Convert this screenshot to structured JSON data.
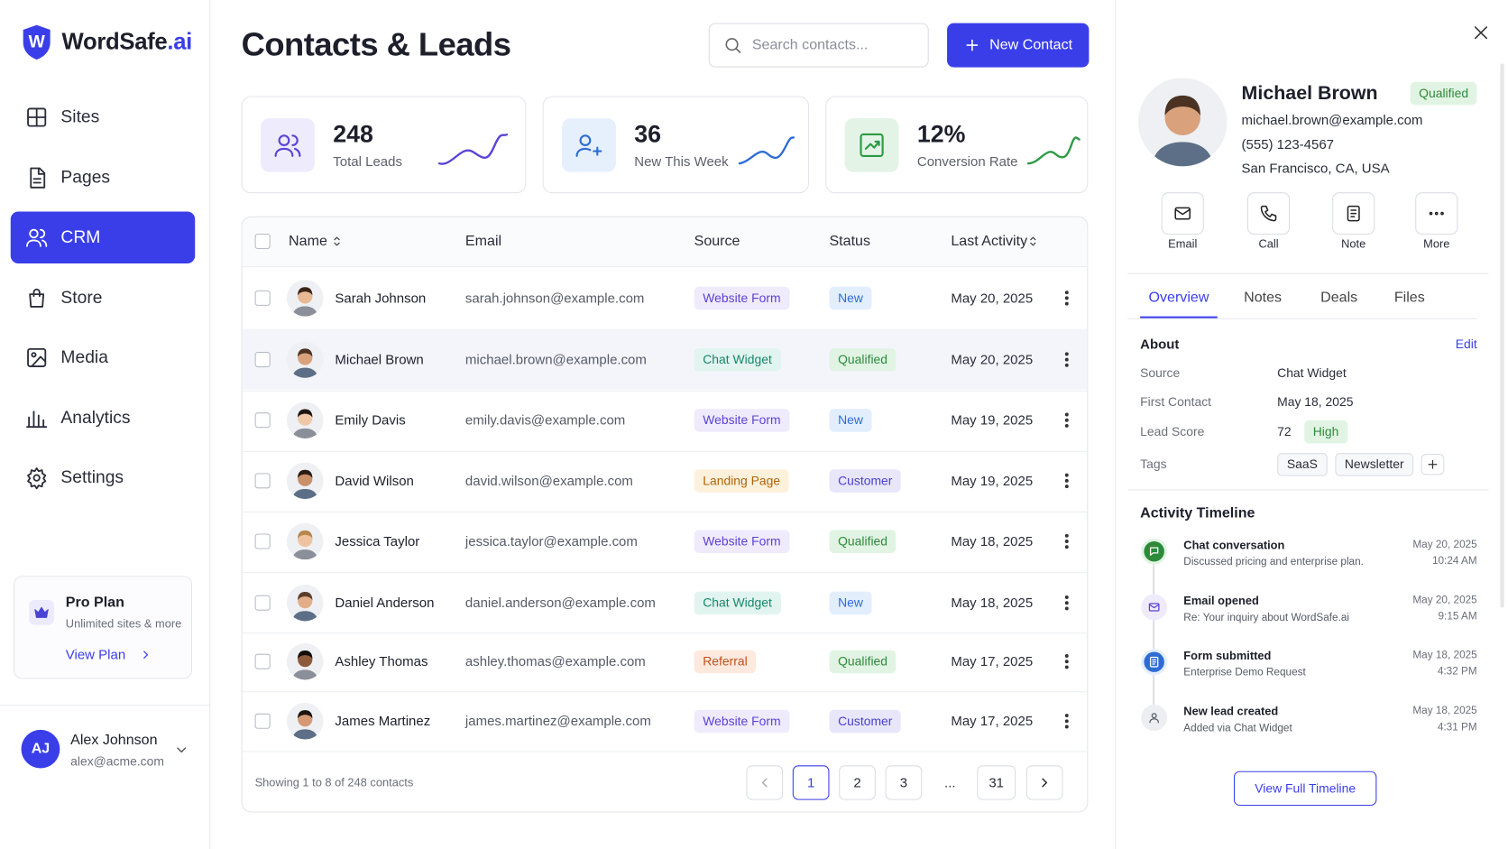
{
  "brand": {
    "letter": "W",
    "name": "WordSafe",
    "suffix": ".ai"
  },
  "nav": [
    {
      "label": "Sites",
      "icon": "grid"
    },
    {
      "label": "Pages",
      "icon": "page"
    },
    {
      "label": "CRM",
      "icon": "users",
      "active": true
    },
    {
      "label": "Store",
      "icon": "bag"
    },
    {
      "label": "Media",
      "icon": "image"
    },
    {
      "label": "Analytics",
      "icon": "bars"
    },
    {
      "label": "Settings",
      "icon": "gear"
    }
  ],
  "plan": {
    "title": "Pro Plan",
    "subtitle": "Unlimited sites & more",
    "link": "View Plan"
  },
  "user": {
    "initials": "AJ",
    "name": "Alex Johnson",
    "email": "alex@acme.com"
  },
  "header": {
    "title": "Contacts & Leads",
    "search_placeholder": "Search contacts...",
    "new_button": "New Contact"
  },
  "stats": [
    {
      "value": 248,
      "label": "Total Leads"
    },
    {
      "value": 36,
      "label": "New This Week"
    },
    {
      "value": "12%",
      "label": "Conversion Rate"
    }
  ],
  "table": {
    "columns": [
      "Name",
      "Email",
      "Source",
      "Status",
      "Last Activity"
    ],
    "rows": [
      {
        "name": "Sarah Johnson",
        "email": "sarah.johnson@example.com",
        "source": "Website Form",
        "source_tone": "purple",
        "status": "New",
        "status_tone": "blue",
        "last_activity": "May 20, 2025"
      },
      {
        "name": "Michael Brown",
        "email": "michael.brown@example.com",
        "source": "Chat Widget",
        "source_tone": "teal",
        "status": "Qualified",
        "status_tone": "green",
        "last_activity": "May 20, 2025",
        "highlighted": true
      },
      {
        "name": "Emily Davis",
        "email": "emily.davis@example.com",
        "source": "Website Form",
        "source_tone": "purple",
        "status": "New",
        "status_tone": "blue",
        "last_activity": "May 19, 2025"
      },
      {
        "name": "David Wilson",
        "email": "david.wilson@example.com",
        "source": "Landing Page",
        "source_tone": "orange",
        "status": "Customer",
        "status_tone": "violet",
        "last_activity": "May 19, 2025"
      },
      {
        "name": "Jessica Taylor",
        "email": "jessica.taylor@example.com",
        "source": "Website Form",
        "source_tone": "purple",
        "status": "Qualified",
        "status_tone": "green",
        "last_activity": "May 18, 2025"
      },
      {
        "name": "Daniel Anderson",
        "email": "daniel.anderson@example.com",
        "source": "Chat Widget",
        "source_tone": "teal",
        "status": "New",
        "status_tone": "blue",
        "last_activity": "May 18, 2025"
      },
      {
        "name": "Ashley Thomas",
        "email": "ashley.thomas@example.com",
        "source": "Referral",
        "source_tone": "peach",
        "status": "Qualified",
        "status_tone": "green",
        "last_activity": "May 17, 2025"
      },
      {
        "name": "James Martinez",
        "email": "james.martinez@example.com",
        "source": "Website Form",
        "source_tone": "purple",
        "status": "Customer",
        "status_tone": "violet",
        "last_activity": "May 17, 2025"
      }
    ],
    "footer": "Showing 1 to 8 of 248 contacts",
    "pages": [
      {
        "label": 1,
        "current": true
      },
      {
        "label": 2
      },
      {
        "label": 3
      },
      {
        "label": "..."
      },
      {
        "label": 31
      }
    ]
  },
  "detail": {
    "name": "Michael Brown",
    "status": "Qualified",
    "status_tone": "green",
    "email": "michael.brown@example.com",
    "phone": "(555) 123-4567",
    "location": "San Francisco, CA, USA",
    "actions": [
      {
        "label": "Email",
        "icon": "mail"
      },
      {
        "label": "Call",
        "icon": "phone"
      },
      {
        "label": "Note",
        "icon": "note"
      },
      {
        "label": "More",
        "icon": "dots"
      }
    ],
    "tabs": [
      {
        "label": "Overview",
        "active": true
      },
      {
        "label": "Notes"
      },
      {
        "label": "Deals"
      },
      {
        "label": "Files"
      }
    ],
    "about": {
      "title": "About",
      "edit": "Edit",
      "fields": [
        {
          "label": "Source",
          "value": "Chat Widget"
        },
        {
          "label": "First Contact",
          "value": "May 18, 2025"
        }
      ],
      "lead_score": {
        "label": "Lead Score",
        "value": 72,
        "rating": "High"
      },
      "tags": {
        "label": "Tags",
        "items": [
          "SaaS",
          "Newsletter"
        ]
      }
    },
    "timeline": {
      "title": "Activity Timeline",
      "items": [
        {
          "title": "Chat conversation",
          "description": "Discussed pricing and enterprise plan.",
          "date": "May 20, 2025",
          "time": "10:24 AM",
          "tone": "green",
          "icon": "chat"
        },
        {
          "title": "Email opened",
          "description": "Re: Your inquiry about WordSafe.ai",
          "date": "May 20, 2025",
          "time": "9:15 AM",
          "tone": "purple",
          "icon": "mail"
        },
        {
          "title": "Form submitted",
          "description": "Enterprise Demo Request",
          "date": "May 18, 2025",
          "time": "4:32 PM",
          "tone": "blue",
          "icon": "note"
        },
        {
          "title": "New lead created",
          "description": "Added via Chat Widget",
          "date": "May 18, 2025",
          "time": "4:31 PM",
          "tone": "gray",
          "icon": "person"
        }
      ],
      "button": "View Full Timeline"
    }
  }
}
